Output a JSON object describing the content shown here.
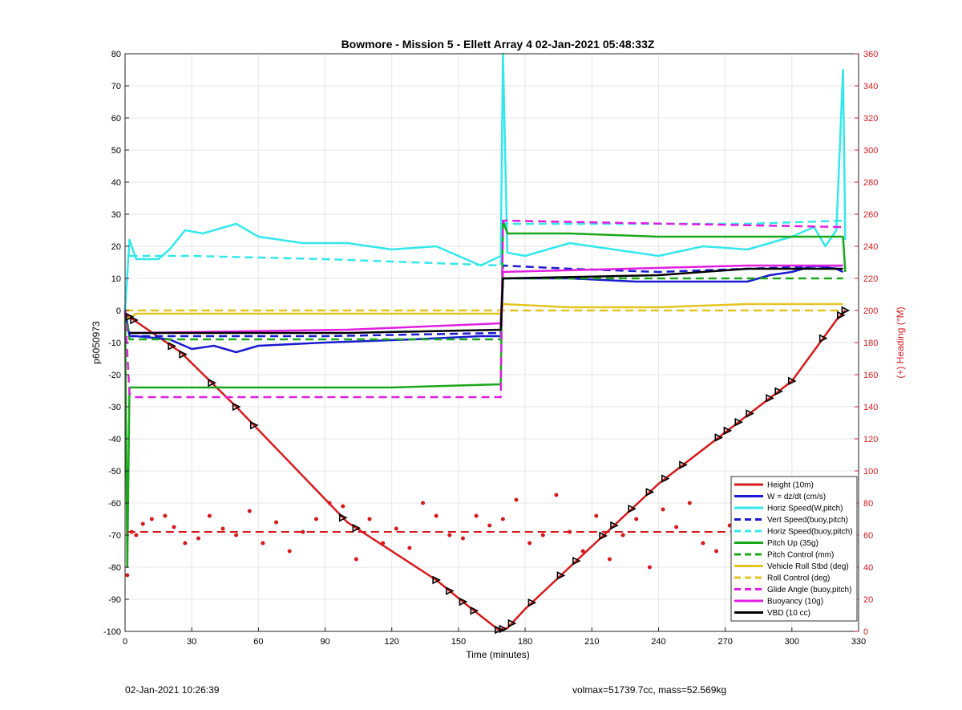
{
  "footer": {
    "left": "02-Jan-2021 10:26:39",
    "right": "volmax=51739.7cc, mass=52.569kg"
  },
  "chart_data": {
    "type": "line",
    "title": "Bowmore - Mission 5 - Ellett Array 4 02-Jan-2021 05:48:33Z",
    "xlabel": "Time (minutes)",
    "ylabel": "p6050973",
    "y2label": "(+) Heading (°M)",
    "xlim": [
      0,
      330
    ],
    "ylim": [
      -100,
      80
    ],
    "y2lim": [
      0,
      360
    ],
    "xticks": [
      0,
      30,
      60,
      90,
      120,
      150,
      180,
      210,
      240,
      270,
      300,
      330
    ],
    "yticks": [
      -100,
      -90,
      -80,
      -70,
      -60,
      -50,
      -40,
      -30,
      -20,
      -10,
      0,
      10,
      20,
      30,
      40,
      50,
      60,
      70,
      80
    ],
    "y2ticks": [
      0,
      20,
      40,
      60,
      80,
      100,
      120,
      140,
      160,
      180,
      200,
      220,
      240,
      260,
      280,
      300,
      320,
      340,
      360
    ],
    "grid": true,
    "legend_position": "bottom-right",
    "colors": {
      "red": "#d7191c",
      "blue": "#1a1ad0",
      "cyan": "#33e8ec",
      "green": "#1aa81a",
      "yellow": "#e2c521",
      "magenta": "#e21ee2",
      "black": "#000000"
    },
    "series": [
      {
        "name": "Height (10m)",
        "color": "#d7191c",
        "style": "solid",
        "x": [
          0,
          2,
          4,
          25,
          50,
          100,
          140,
          156,
          168,
          172,
          180,
          200,
          240,
          270,
          300,
          320,
          324
        ],
        "values": [
          -1,
          -2,
          -3,
          -13,
          -30,
          -66,
          -84,
          -93,
          -99.5,
          -99,
          -93,
          -80,
          -54,
          -38,
          -22,
          -3,
          0
        ]
      },
      {
        "name": "W = dz/dt (cm/s)",
        "color": "#1a1ad0",
        "style": "solid",
        "x": [
          0,
          2,
          5,
          20,
          30,
          40,
          50,
          60,
          90,
          130,
          160,
          169,
          170,
          175,
          200,
          230,
          270,
          280,
          290,
          300,
          310,
          320,
          323
        ],
        "values": [
          0,
          -8,
          -8,
          -9,
          -12,
          -11,
          -13,
          -11,
          -10,
          -9,
          -8,
          -8,
          10,
          10,
          10,
          9,
          9,
          9,
          11,
          12,
          14,
          13,
          12
        ]
      },
      {
        "name": "Horiz Speed(W,pitch)",
        "color": "#33e8ec",
        "style": "solid",
        "x": [
          0,
          2,
          5,
          15,
          20,
          27,
          35,
          50,
          60,
          80,
          100,
          120,
          140,
          150,
          160,
          169,
          170,
          172,
          180,
          200,
          220,
          240,
          260,
          280,
          300,
          310,
          315,
          320,
          323,
          324
        ],
        "values": [
          0,
          22,
          16,
          16,
          19,
          25,
          24,
          27,
          23,
          21,
          21,
          19,
          20,
          17,
          14,
          17,
          80,
          18,
          17,
          21,
          19,
          17,
          20,
          19,
          23,
          26,
          20,
          25,
          75,
          22
        ]
      },
      {
        "name": "Vert Speed(buoy,pitch)",
        "color": "#1a1ad0",
        "style": "dashed",
        "x": [
          0,
          2,
          5,
          90,
          169,
          170,
          200,
          240,
          280,
          323
        ],
        "values": [
          0,
          -8,
          -8,
          -8,
          -7,
          14,
          13,
          12,
          13,
          14
        ]
      },
      {
        "name": "Horiz Speed(buoy,pitch)",
        "color": "#33e8ec",
        "style": "dashed",
        "x": [
          2,
          30,
          90,
          169,
          170,
          200,
          240,
          280,
          323
        ],
        "values": [
          17,
          17,
          16,
          14,
          27,
          27,
          27,
          27,
          28
        ]
      },
      {
        "name": "Pitch Up (35g)",
        "color": "#1aa81a",
        "style": "solid",
        "x": [
          0,
          1,
          2,
          5,
          60,
          120,
          169,
          170,
          172,
          200,
          240,
          280,
          323,
          324
        ],
        "values": [
          0,
          -80,
          -24,
          -24,
          -24,
          -24,
          -23,
          28,
          24,
          24,
          23,
          23,
          23,
          12
        ]
      },
      {
        "name": "Pitch Control (mm)",
        "color": "#1aa81a",
        "style": "dashed",
        "x": [
          0,
          2,
          5,
          169,
          170,
          323
        ],
        "values": [
          0,
          -9,
          -9,
          -9,
          10,
          10
        ]
      },
      {
        "name": "Vehicle Roll Stbd (deg)",
        "color": "#e2c521",
        "style": "solid",
        "x": [
          0,
          5,
          60,
          120,
          169,
          170,
          200,
          240,
          280,
          323
        ],
        "values": [
          -3,
          -1,
          -1,
          -1,
          -1,
          2,
          1,
          1,
          2,
          2
        ]
      },
      {
        "name": "Roll Control (deg)",
        "color": "#e2c521",
        "style": "dashed",
        "x": [
          0,
          5,
          60,
          120,
          169,
          170,
          323
        ],
        "values": [
          0,
          0,
          0,
          0,
          0,
          0,
          0
        ]
      },
      {
        "name": "Glide Angle (buoy,pitch)",
        "color": "#e21ee2",
        "style": "dashed",
        "x": [
          0,
          2,
          5,
          169,
          170,
          323
        ],
        "values": [
          0,
          -26,
          -27,
          -27,
          28,
          26
        ]
      },
      {
        "name": "Buoyancy (10g)",
        "color": "#e21ee2",
        "style": "solid",
        "x": [
          2,
          5,
          100,
          169,
          170,
          280,
          323
        ],
        "values": [
          -7,
          -7,
          -6,
          -4,
          12,
          14,
          14
        ]
      },
      {
        "name": "VBD (10 cc)",
        "color": "#000000",
        "style": "solid",
        "x": [
          2,
          5,
          100,
          169,
          170,
          240,
          280,
          323
        ],
        "values": [
          -7,
          -7,
          -7,
          -6,
          10,
          11,
          13,
          13
        ]
      }
    ],
    "heading": {
      "axis": "right",
      "color": "#d7191c",
      "points_x": [
        1,
        3,
        5,
        8,
        12,
        18,
        22,
        27,
        33,
        38,
        44,
        50,
        56,
        62,
        68,
        74,
        80,
        86,
        92,
        98,
        104,
        110,
        116,
        122,
        128,
        134,
        140,
        146,
        152,
        158,
        164,
        170,
        176,
        182,
        188,
        194,
        200,
        206,
        212,
        218,
        224,
        230,
        236,
        242,
        248,
        254,
        260,
        266,
        272,
        278,
        284,
        290,
        296,
        302,
        308,
        314,
        320,
        324
      ],
      "points_values": [
        35,
        62,
        60,
        67,
        70,
        72,
        65,
        55,
        58,
        72,
        64,
        60,
        75,
        55,
        68,
        50,
        62,
        70,
        80,
        78,
        45,
        70,
        55,
        64,
        52,
        80,
        72,
        60,
        58,
        72,
        66,
        70,
        82,
        55,
        60,
        85,
        62,
        50,
        72,
        45,
        60,
        70,
        40,
        76,
        65,
        80,
        55,
        50,
        66,
        60,
        72,
        58,
        60,
        64,
        72,
        60,
        65,
        60
      ],
      "target": 62
    },
    "markers": {
      "symbol": "triangle",
      "x": [
        2,
        4,
        21,
        26,
        39,
        50,
        58,
        98,
        104,
        140,
        146,
        152,
        157,
        168,
        170,
        174,
        183,
        196,
        203,
        215,
        220,
        228,
        236,
        243,
        251,
        267,
        271,
        276,
        281,
        290,
        294,
        300,
        314,
        322,
        324
      ]
    }
  }
}
